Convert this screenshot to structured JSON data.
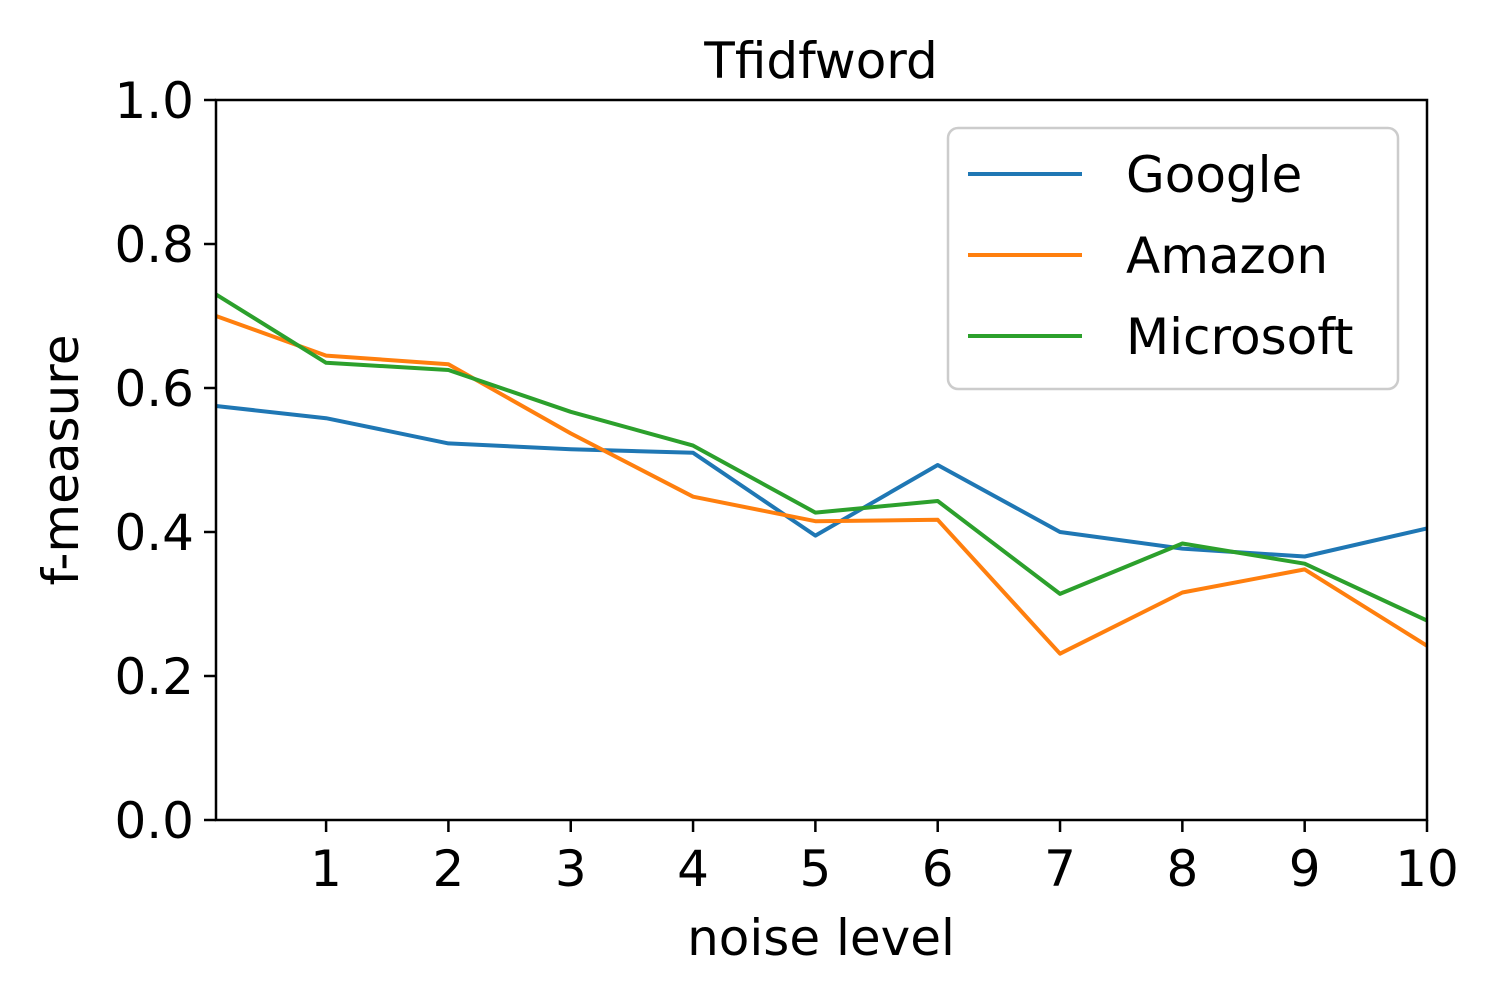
{
  "chart_data": {
    "type": "line",
    "title": "Tfidfword",
    "xlabel": "noise level",
    "ylabel": "f-measure",
    "xlim": [
      0.1,
      10
    ],
    "ylim": [
      0,
      1.0
    ],
    "xticks": [
      1,
      2,
      3,
      4,
      5,
      6,
      7,
      8,
      9,
      10
    ],
    "yticks": [
      0.0,
      0.2,
      0.4,
      0.6,
      0.8,
      1.0
    ],
    "ytick_labels": [
      "0.0",
      "0.2",
      "0.4",
      "0.6",
      "0.8",
      "1.0"
    ],
    "grid": false,
    "legend_position": "top-right",
    "x": [
      0.1,
      1,
      2,
      3,
      4,
      5,
      6,
      7,
      8,
      9,
      10
    ],
    "series": [
      {
        "name": "Google",
        "color": "#1f77b4",
        "values": [
          0.575,
          0.558,
          0.523,
          0.515,
          0.51,
          0.395,
          0.493,
          0.4,
          0.377,
          0.366,
          0.405
        ]
      },
      {
        "name": "Amazon",
        "color": "#ff7f0e",
        "values": [
          0.7,
          0.645,
          0.633,
          0.537,
          0.449,
          0.415,
          0.417,
          0.231,
          0.316,
          0.348,
          0.242
        ]
      },
      {
        "name": "Microsoft",
        "color": "#2ca02c",
        "values": [
          0.73,
          0.635,
          0.625,
          0.567,
          0.52,
          0.427,
          0.443,
          0.314,
          0.384,
          0.356,
          0.277
        ]
      }
    ]
  }
}
